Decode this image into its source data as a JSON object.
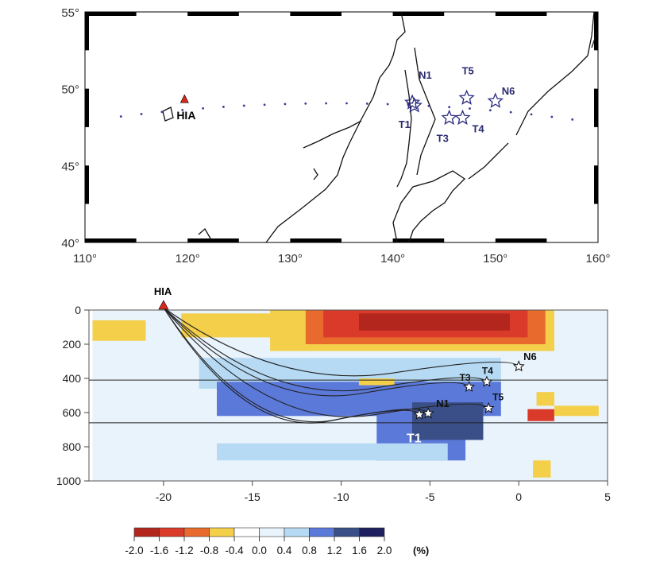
{
  "map": {
    "lon_ticks": [
      "110°",
      "120°",
      "130°",
      "140°",
      "150°",
      "160°"
    ],
    "lat_ticks": [
      "40°",
      "45°",
      "50°",
      "55°"
    ],
    "lon_range": [
      110,
      160
    ],
    "lat_range": [
      40,
      55
    ],
    "station": {
      "label": "HIA",
      "lon": 119.7,
      "lat": 49.3
    },
    "events": [
      {
        "label": "N1",
        "lon": 141.9,
        "lat": 49.1
      },
      {
        "label": "T1",
        "lon": 142.1,
        "lat": 48.9
      },
      {
        "label": "T3",
        "lon": 145.5,
        "lat": 48.1
      },
      {
        "label": "T4",
        "lon": 146.8,
        "lat": 48.1
      },
      {
        "label": "T5",
        "lon": 147.2,
        "lat": 49.4
      },
      {
        "label": "N6",
        "lon": 150.0,
        "lat": 49.2
      }
    ]
  },
  "chart_data": {
    "type": "heatmap",
    "xlabel": "",
    "ylabel": "",
    "xlim": [
      -24.2,
      5
    ],
    "ylim": [
      0,
      1000
    ],
    "x_ticks": [
      "-20",
      "-15",
      "-10",
      "-5",
      "0",
      "5"
    ],
    "y_ticks": [
      "0",
      "200",
      "400",
      "600",
      "800",
      "1000"
    ],
    "discontinuities_km": [
      410,
      660
    ],
    "station": {
      "label": "HIA",
      "x": -20,
      "depth": 0
    },
    "events": [
      {
        "label": "N1",
        "x": -5.1,
        "depth": 605
      },
      {
        "label": "T1",
        "x": -5.6,
        "depth": 612
      },
      {
        "label": "T3",
        "x": -2.8,
        "depth": 450
      },
      {
        "label": "T4",
        "x": -1.8,
        "depth": 420
      },
      {
        "label": "T5",
        "x": -1.7,
        "depth": 575
      },
      {
        "label": "N6",
        "x": 0.0,
        "depth": 330
      }
    ],
    "anomalies": [
      {
        "x": [
          -24,
          5
        ],
        "d": [
          0,
          1000
        ],
        "v": 0.4
      },
      {
        "x": [
          -24,
          -21
        ],
        "d": [
          60,
          180
        ],
        "v": -0.6
      },
      {
        "x": [
          -19,
          -8
        ],
        "d": [
          20,
          160
        ],
        "v": -0.6
      },
      {
        "x": [
          -14,
          2
        ],
        "d": [
          0,
          240
        ],
        "v": -0.6
      },
      {
        "x": [
          -12,
          1.5
        ],
        "d": [
          0,
          200
        ],
        "v": -1.0
      },
      {
        "x": [
          -11,
          0.5
        ],
        "d": [
          0,
          160
        ],
        "v": -1.4
      },
      {
        "x": [
          -9,
          -0.5
        ],
        "d": [
          20,
          120
        ],
        "v": -1.8
      },
      {
        "x": [
          -18,
          -1
        ],
        "d": [
          280,
          460
        ],
        "v": 0.6
      },
      {
        "x": [
          -17,
          -1
        ],
        "d": [
          420,
          620
        ],
        "v": 1.0
      },
      {
        "x": [
          -13,
          -3
        ],
        "d": [
          440,
          560
        ],
        "v": 1.0
      },
      {
        "x": [
          -8,
          -3
        ],
        "d": [
          420,
          880
        ],
        "v": 1.0
      },
      {
        "x": [
          -6,
          -2
        ],
        "d": [
          540,
          760
        ],
        "v": 1.4
      },
      {
        "x": [
          -9,
          -7
        ],
        "d": [
          400,
          440
        ],
        "v": -0.6
      },
      {
        "x": [
          0.5,
          2
        ],
        "d": [
          580,
          650
        ],
        "v": -1.4
      },
      {
        "x": [
          2,
          4.5
        ],
        "d": [
          560,
          620
        ],
        "v": -0.6
      },
      {
        "x": [
          1,
          2
        ],
        "d": [
          480,
          560
        ],
        "v": -0.6
      },
      {
        "x": [
          -17,
          -4
        ],
        "d": [
          780,
          880
        ],
        "v": 0.6
      },
      {
        "x": [
          0.8,
          1.8
        ],
        "d": [
          880,
          980
        ],
        "v": -0.6
      }
    ]
  },
  "colorbar": {
    "labels": [
      "-2.0",
      "-1.6",
      "-1.2",
      "-0.8",
      "-0.4",
      "0.0",
      "0.4",
      "0.8",
      "1.2",
      "1.6",
      "2.0"
    ],
    "colors": [
      "#b3261e",
      "#d93a2a",
      "#e86a2c",
      "#f4cf4a",
      "#ffffff",
      "#e9f3fc",
      "#b6daf4",
      "#5b79d9",
      "#3a4f88",
      "#1d1f5e"
    ],
    "unit": "(%)"
  }
}
